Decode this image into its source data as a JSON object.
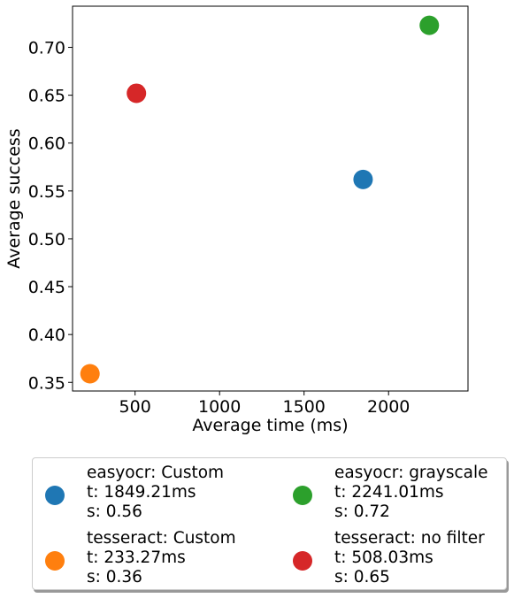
{
  "chart_data": {
    "type": "scatter",
    "title": "",
    "xlabel": "Average time (ms)",
    "ylabel": "Average success",
    "xlim": [
      130,
      2470
    ],
    "ylim": [
      0.341,
      0.743
    ],
    "xticks": [
      500,
      1000,
      1500,
      2000
    ],
    "xtick_labels": [
      "500",
      "1000",
      "1500",
      "2000"
    ],
    "yticks": [
      0.35,
      0.4,
      0.45,
      0.5,
      0.55,
      0.6,
      0.65,
      0.7
    ],
    "ytick_labels": [
      "0.35",
      "0.40",
      "0.45",
      "0.50",
      "0.55",
      "0.60",
      "0.65",
      "0.70"
    ],
    "grid": false,
    "legend_position": "below",
    "series": [
      {
        "name": "easyocr: Custom",
        "detail_t": "t: 1849.21ms",
        "detail_s": "s: 0.56",
        "x": 1849.21,
        "y": 0.562,
        "color": "#1f77b4"
      },
      {
        "name": "tesseract: Custom",
        "detail_t": "t: 233.27ms",
        "detail_s": "s: 0.36",
        "x": 233.27,
        "y": 0.359,
        "color": "#ff7f0e"
      },
      {
        "name": "easyocr: grayscale",
        "detail_t": "t: 2241.01ms",
        "detail_s": "s: 0.72",
        "x": 2241.01,
        "y": 0.723,
        "color": "#2ca02c"
      },
      {
        "name": "tesseract: no filter",
        "detail_t": "t: 508.03ms",
        "detail_s": "s: 0.65",
        "x": 508.03,
        "y": 0.652,
        "color": "#d62728"
      }
    ]
  }
}
